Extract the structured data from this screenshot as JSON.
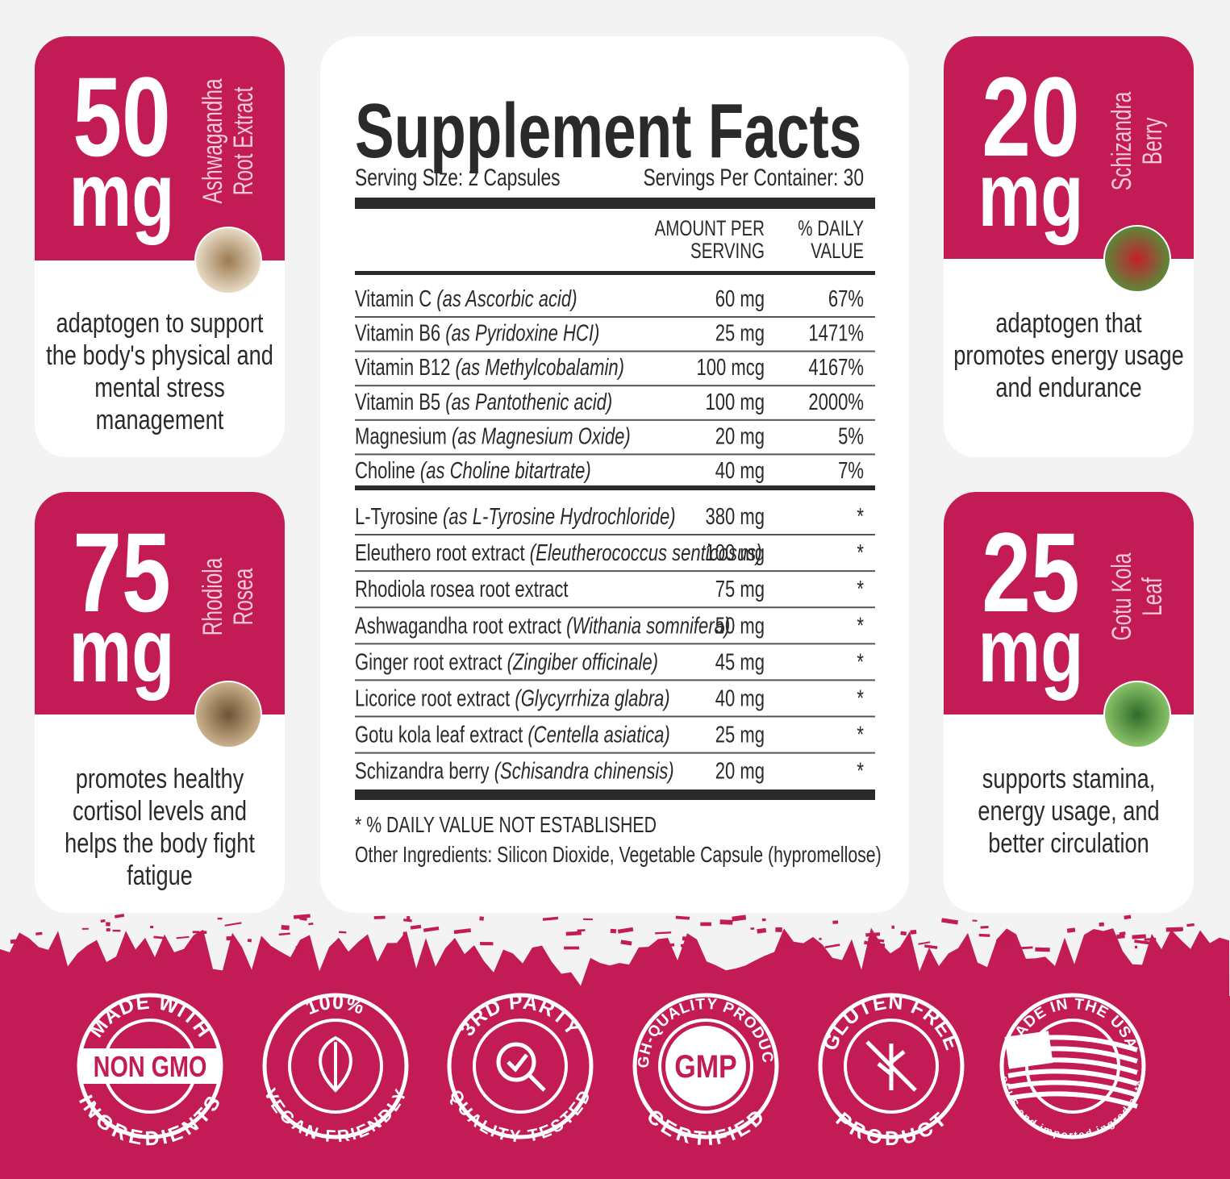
{
  "cards": [
    {
      "amount": "50",
      "unit": "mg",
      "name_lines": [
        "Ashwagandha",
        "Root Extract"
      ],
      "description_lines": [
        "adaptogen to support",
        "the body's physical and",
        "mental stress",
        "management"
      ]
    },
    {
      "amount": "20",
      "unit": "mg",
      "name_lines": [
        "Schizandra",
        "Berry"
      ],
      "description_lines": [
        "adaptogen that",
        "promotes energy usage",
        "and endurance"
      ]
    },
    {
      "amount": "75",
      "unit": "mg",
      "name_lines": [
        "Rhodiola",
        "Rosea"
      ],
      "description_lines": [
        "promotes healthy",
        "cortisol levels and",
        "helps the body fight",
        "fatigue"
      ]
    },
    {
      "amount": "25",
      "unit": "mg",
      "name_lines": [
        "Gotu Kola",
        "Leaf"
      ],
      "description_lines": [
        "supports stamina,",
        "energy usage, and",
        "better circulation"
      ]
    }
  ],
  "facts": {
    "title": "Supplement Facts",
    "serving_size": "Serving Size: 2 Capsules",
    "servings_per_container": "Servings Per Container: 30",
    "amount_header": [
      "AMOUNT PER",
      "SERVING"
    ],
    "dv_header": [
      "% DAILY",
      "VALUE"
    ],
    "vitamins": [
      {
        "name": "Vitamin C ",
        "source": "(as Ascorbic acid)",
        "amount": "60 mg",
        "dv": "67%"
      },
      {
        "name": "Vitamin B6 ",
        "source": "(as Pyridoxine HCI)",
        "amount": "25 mg",
        "dv": "1471%"
      },
      {
        "name": "Vitamin B12 ",
        "source": "(as Methylcobalamin)",
        "amount": "100 mcg",
        "dv": "4167%"
      },
      {
        "name": "Vitamin B5 ",
        "source": "(as Pantothenic acid)",
        "amount": "100 mg",
        "dv": "2000%"
      },
      {
        "name": "Magnesium ",
        "source": "(as Magnesium Oxide)",
        "amount": "20 mg",
        "dv": "5%"
      },
      {
        "name": "Choline ",
        "source": "(as Choline bitartrate)",
        "amount": "40 mg",
        "dv": "7%"
      }
    ],
    "herbals": [
      {
        "name": "L-Tyrosine ",
        "source": "(as L-Tyrosine Hydrochloride)",
        "amount": "380 mg",
        "dv": "*"
      },
      {
        "name": "Eleuthero root extract ",
        "source": "(Eleutherococcus senticosus)",
        "amount": "100 mg",
        "dv": "*"
      },
      {
        "name": "Rhodiola rosea root extract",
        "source": "",
        "amount": "75 mg",
        "dv": "*"
      },
      {
        "name": "Ashwagandha root extract ",
        "source": "(Withania somnifera)",
        "amount": "50 mg",
        "dv": "*"
      },
      {
        "name": "Ginger root extract ",
        "source": "(Zingiber officinale)",
        "amount": "45 mg",
        "dv": "*"
      },
      {
        "name": "Licorice root extract ",
        "source": "(Glycyrrhiza glabra)",
        "amount": "40 mg",
        "dv": "*"
      },
      {
        "name": "Gotu kola leaf extract ",
        "source": "(Centella asiatica)",
        "amount": "25 mg",
        "dv": "*"
      },
      {
        "name": "Schizandra berry ",
        "source": "(Schisandra chinensis)",
        "amount": "20 mg",
        "dv": "*"
      }
    ],
    "footnote": "* % DAILY VALUE NOT ESTABLISHED",
    "other_ingredients": "Other Ingredients: Silicon Dioxide, Vegetable Capsule (hypromellose)"
  },
  "badges": [
    {
      "top": "MADE WITH",
      "center": "NON GMO",
      "bottom": "INGREDIENTS"
    },
    {
      "top": "100%",
      "bottom": "VEGAN FRIENDLY"
    },
    {
      "top": "3RD PARTY",
      "bottom": "QUALITY TESTED"
    },
    {
      "top": "HIGH-QUALITY PRODUCTS",
      "center": "GMP",
      "bottom": "CERTIFIED"
    },
    {
      "top": "GLUTEN FREE",
      "bottom": "PRODUCT"
    },
    {
      "top": "MADE IN THE USA",
      "bottom": "of US and imported ingredients."
    }
  ]
}
